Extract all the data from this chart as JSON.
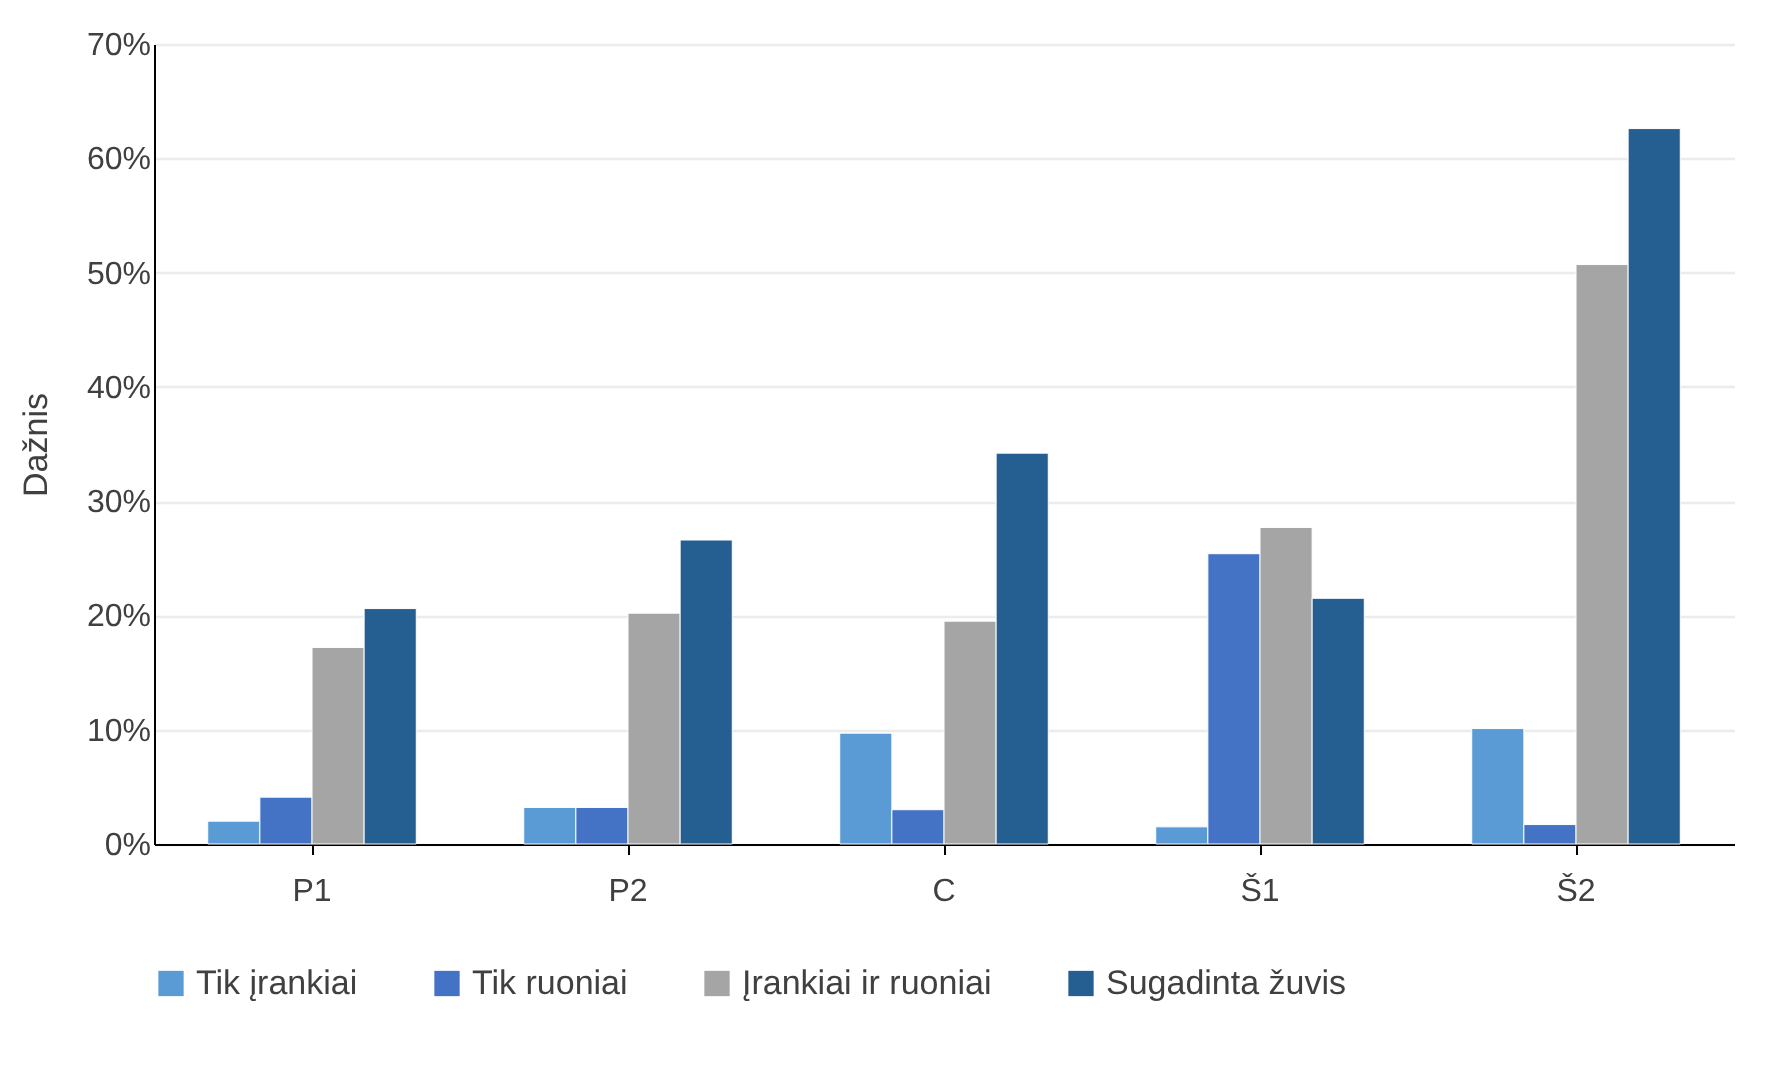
{
  "chart_data": {
    "type": "bar",
    "ylabel": "Dažnis",
    "categories": [
      "P1",
      "P2",
      "C",
      "Š1",
      "Š2"
    ],
    "series": [
      {
        "name": "Tik įrankiai",
        "color": "#5b9bd5",
        "values": [
          2.0,
          3.2,
          9.7,
          1.5,
          10.1
        ]
      },
      {
        "name": "Tik ruoniai",
        "color": "#4472c4",
        "values": [
          4.1,
          3.2,
          3.0,
          25.4,
          1.7
        ]
      },
      {
        "name": "Įrankiai ir ruoniai",
        "color": "#a5a5a5",
        "values": [
          17.2,
          20.2,
          19.5,
          27.7,
          50.7
        ]
      },
      {
        "name": "Sugadinta žuvis",
        "color": "#255e91",
        "values": [
          20.6,
          26.6,
          34.2,
          21.5,
          62.6
        ]
      }
    ],
    "ylim": [
      0,
      70
    ],
    "yticks": [
      {
        "value": 0,
        "label": "0%"
      },
      {
        "value": 10,
        "label": "10%"
      },
      {
        "value": 20,
        "label": "20%"
      },
      {
        "value": 30,
        "label": "30%"
      },
      {
        "value": 40,
        "label": "40%"
      },
      {
        "value": 50,
        "label": "50%"
      },
      {
        "value": 60,
        "label": "60%"
      },
      {
        "value": 70,
        "label": "70%"
      }
    ],
    "grid": "y",
    "legend": "bottom"
  }
}
